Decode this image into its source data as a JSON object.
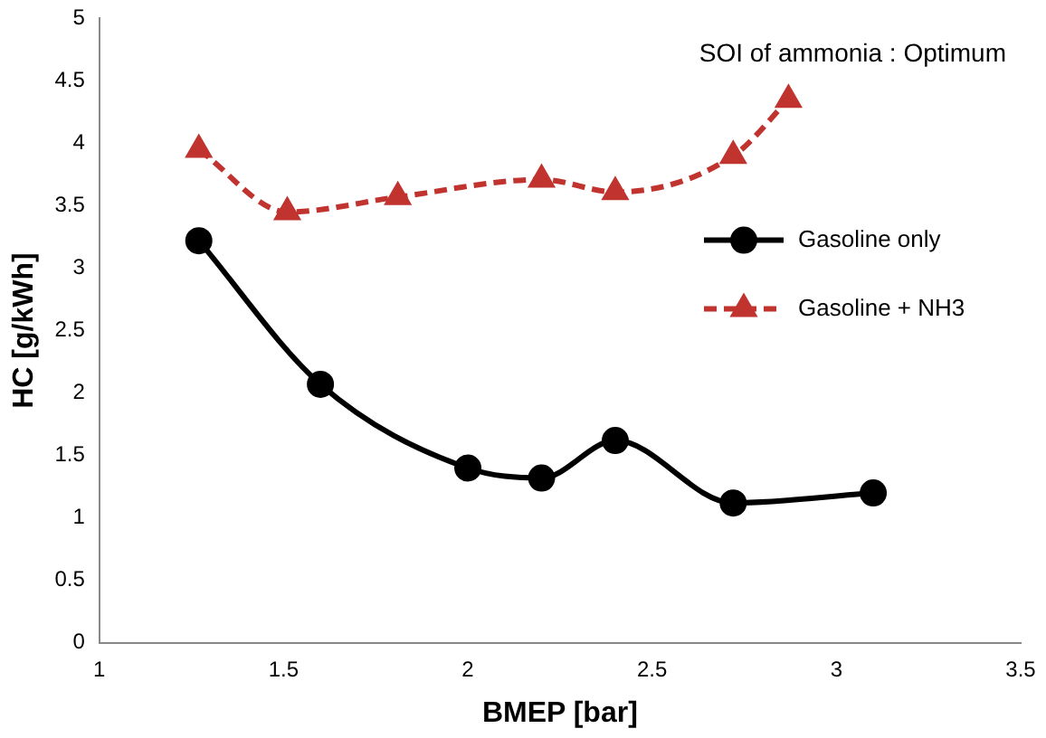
{
  "chart_data": {
    "type": "line",
    "xlabel": "BMEP [bar]",
    "ylabel": "HC [g/kWh]",
    "xlim": [
      1,
      3.5
    ],
    "xticks": [
      1,
      1.5,
      2,
      2.5,
      3,
      3.5
    ],
    "ylim": [
      0,
      5
    ],
    "yticks": [
      0,
      0.5,
      1,
      1.5,
      2,
      2.5,
      3,
      3.5,
      4,
      4.5,
      5
    ],
    "grid": false,
    "legend": "right",
    "annotations": [
      "SOI of ammonia : Optimum"
    ],
    "series": [
      {
        "name": "Gasoline only",
        "color": "#000000",
        "marker": "circle",
        "line_style": "solid",
        "x": [
          1.27,
          1.6,
          2.0,
          2.2,
          2.4,
          2.72,
          3.1
        ],
        "values": [
          3.22,
          2.07,
          1.4,
          1.32,
          1.62,
          1.12,
          1.2
        ]
      },
      {
        "name": "Gasoline + NH3",
        "color": "#c0332e",
        "marker": "triangle",
        "line_style": "dashed",
        "x": [
          1.27,
          1.51,
          1.81,
          2.2,
          2.4,
          2.72,
          2.87
        ],
        "values": [
          3.95,
          3.45,
          3.57,
          3.71,
          3.61,
          3.9,
          4.35
        ]
      }
    ]
  }
}
